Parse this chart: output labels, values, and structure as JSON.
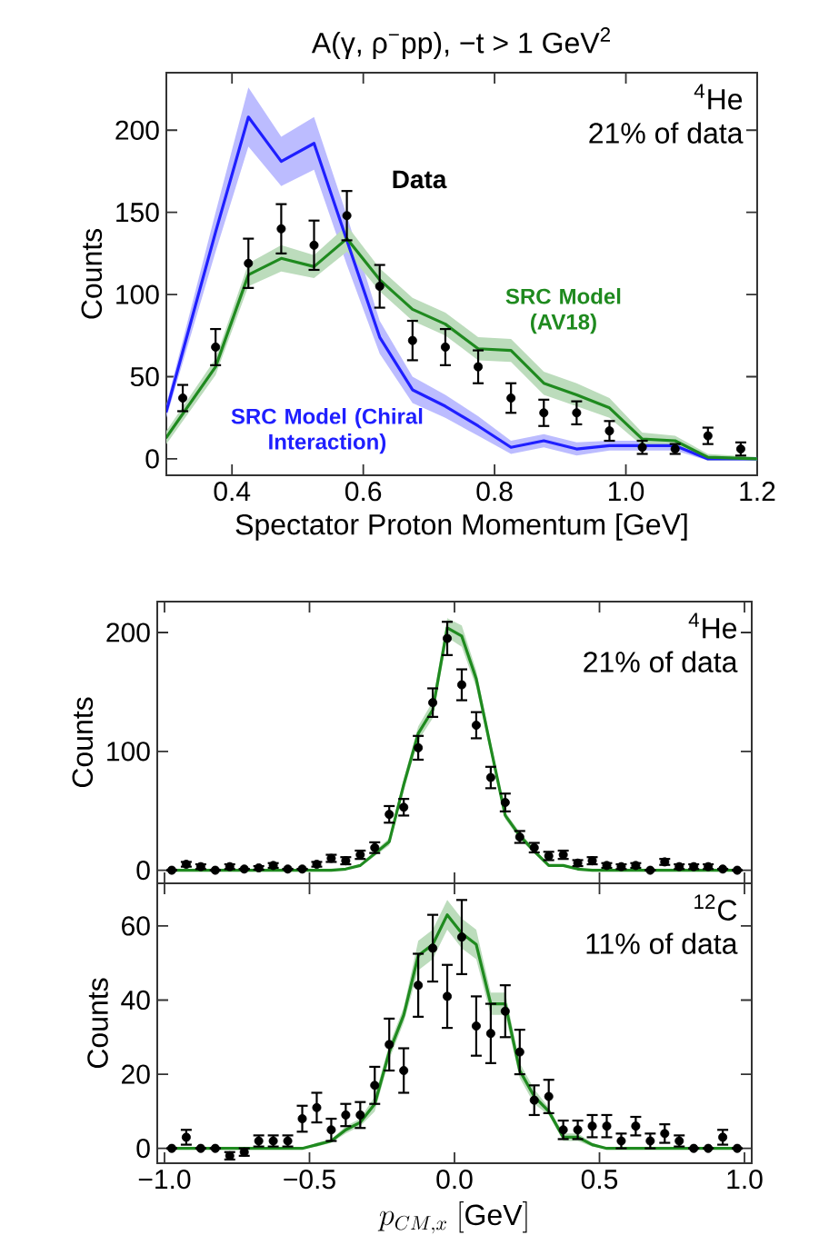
{
  "chart_data": [
    {
      "type": "line",
      "title": "A(γ, ρ$^{−}$pp), −t > 1 GeV$^{2}$",
      "xlabel": "Spectator Proton Momentum [GeV]",
      "ylabel": "Counts",
      "xlim": [
        0.3,
        1.2
      ],
      "ylim": [
        -10,
        235
      ],
      "xticks": [
        {
          "value": 0.4,
          "label": "0.4"
        },
        {
          "value": 0.6,
          "label": "0.6"
        },
        {
          "value": 0.8,
          "label": "0.8"
        },
        {
          "value": 1.0,
          "label": "1.0"
        },
        {
          "value": 1.2,
          "label": "1.2"
        }
      ],
      "yticks": [
        0,
        50,
        100,
        150,
        200
      ],
      "annotations": [
        "$^{4}$He",
        "21% of data"
      ],
      "series": [
        {
          "name": "Data",
          "type": "scatter",
          "marker": "circle",
          "color": "#000000",
          "x": [
            0.325,
            0.375,
            0.425,
            0.475,
            0.525,
            0.575,
            0.625,
            0.675,
            0.725,
            0.775,
            0.825,
            0.875,
            0.925,
            0.975,
            1.025,
            1.075,
            1.125,
            1.175
          ],
          "values": [
            37,
            68,
            119,
            140,
            130,
            148,
            105,
            72,
            68,
            56,
            37,
            28,
            28,
            17,
            7,
            6,
            14,
            6
          ],
          "errors": [
            8,
            11,
            15,
            15,
            15,
            15,
            13,
            12,
            11,
            10,
            9,
            8,
            7,
            6,
            4,
            3,
            5,
            4
          ]
        },
        {
          "name": "SRC Model (Chiral Interaction)",
          "color": "#1f1fff",
          "x": [
            0.3,
            0.375,
            0.425,
            0.475,
            0.525,
            0.575,
            0.625,
            0.675,
            0.725,
            0.775,
            0.825,
            0.875,
            0.925,
            0.975,
            1.025,
            1.075,
            1.125,
            1.2
          ],
          "values": [
            29,
            138,
            208,
            181,
            192,
            133,
            74,
            42,
            32,
            20,
            7,
            11,
            6,
            8,
            8,
            8,
            0,
            0
          ],
          "lower": [
            25,
            126,
            190,
            166,
            176,
            118,
            64,
            34,
            25,
            14,
            3,
            7,
            2,
            5,
            5,
            5,
            -1,
            -1
          ],
          "upper": [
            33,
            150,
            226,
            196,
            208,
            148,
            84,
            50,
            39,
            26,
            11,
            15,
            10,
            11,
            11,
            11,
            2,
            1
          ]
        },
        {
          "name": "SRC Model (AV18)",
          "color": "#1f8a1f",
          "x": [
            0.3,
            0.375,
            0.425,
            0.475,
            0.525,
            0.575,
            0.625,
            0.675,
            0.725,
            0.775,
            0.825,
            0.875,
            0.925,
            0.975,
            1.025,
            1.075,
            1.125,
            1.2
          ],
          "values": [
            13,
            56,
            112,
            122,
            117,
            134,
            109,
            91,
            82,
            67,
            66,
            46,
            39,
            31,
            12,
            11,
            1,
            0
          ],
          "lower": [
            9,
            51,
            105,
            114,
            110,
            126,
            102,
            84,
            75,
            60,
            59,
            39,
            32,
            25,
            8,
            8,
            -1,
            -1
          ],
          "upper": [
            17,
            61,
            119,
            130,
            124,
            142,
            116,
            98,
            89,
            74,
            73,
            53,
            46,
            37,
            16,
            14,
            3,
            1
          ]
        }
      ]
    },
    {
      "type": "line",
      "ylabel": "Counts",
      "tick_labels": "y",
      "xlim": [
        -1.025,
        1.025
      ],
      "ylim": [
        -11,
        226
      ],
      "xticks": [
        {
          "value": -1.0,
          "label": null
        },
        {
          "value": -0.5,
          "label": null
        },
        {
          "value": 0.0,
          "label": null
        },
        {
          "value": 0.5,
          "label": null
        },
        {
          "value": 1.0,
          "label": null
        }
      ],
      "yticks": [
        0,
        100,
        200
      ],
      "annotations": [
        "$^{4}$He",
        "21% of data"
      ],
      "series": [
        {
          "type": "scatter",
          "marker": "circle",
          "color": "#000000",
          "x": [
            -0.975,
            -0.925,
            -0.875,
            -0.825,
            -0.775,
            -0.725,
            -0.675,
            -0.625,
            -0.575,
            -0.525,
            -0.475,
            -0.425,
            -0.375,
            -0.325,
            -0.275,
            -0.225,
            -0.175,
            -0.125,
            -0.075,
            -0.025,
            0.025,
            0.075,
            0.125,
            0.175,
            0.225,
            0.275,
            0.325,
            0.375,
            0.425,
            0.475,
            0.525,
            0.575,
            0.625,
            0.675,
            0.725,
            0.775,
            0.825,
            0.875,
            0.925,
            0.975
          ],
          "values": [
            0,
            5,
            3,
            0,
            3,
            1,
            2,
            4,
            1,
            1,
            5,
            10,
            8,
            13,
            19,
            47,
            53,
            103,
            141,
            195,
            156,
            122,
            78,
            57,
            28,
            19,
            12,
            13,
            6,
            8,
            4,
            3,
            4,
            0,
            7,
            3,
            3,
            3,
            1,
            0
          ],
          "errors": [
            null,
            2,
            2,
            null,
            2,
            null,
            1.5,
            2,
            null,
            null,
            2,
            3,
            3,
            3.5,
            4.5,
            7,
            7,
            10,
            12,
            14,
            13,
            11,
            9,
            7.5,
            5,
            4,
            3.5,
            3.5,
            2.5,
            3,
            2,
            2,
            2,
            null,
            2.5,
            2,
            2,
            2,
            null,
            null
          ]
        },
        {
          "color": "#1f8a1f",
          "x": [
            -0.975,
            -0.925,
            -0.875,
            -0.825,
            -0.775,
            -0.725,
            -0.675,
            -0.625,
            -0.575,
            -0.525,
            -0.475,
            -0.425,
            -0.375,
            -0.325,
            -0.275,
            -0.225,
            -0.175,
            -0.125,
            -0.075,
            -0.025,
            0.025,
            0.075,
            0.125,
            0.175,
            0.225,
            0.275,
            0.325,
            0.375,
            0.425,
            0.475,
            0.525,
            0.575,
            0.625,
            0.675,
            0.725,
            0.775,
            0.825,
            0.875,
            0.925,
            0.975
          ],
          "values": [
            0,
            0,
            0,
            0,
            0,
            0,
            0,
            0,
            0,
            0,
            0,
            0,
            1,
            4,
            14,
            24,
            72,
            115,
            135,
            204,
            197,
            161,
            103,
            46,
            29,
            16,
            4,
            4,
            1,
            0,
            0,
            0,
            0,
            0,
            0,
            0,
            0,
            0,
            0,
            0
          ],
          "lower": [
            0,
            0,
            0,
            0,
            0,
            0,
            0,
            0,
            0,
            0,
            0,
            0,
            0.5,
            3,
            12,
            21,
            67,
            109,
            128,
            196,
            188,
            154,
            98,
            43,
            26,
            14,
            3,
            3,
            0.5,
            0,
            0,
            0,
            0,
            0,
            0,
            0,
            0,
            0,
            0,
            0
          ],
          "upper": [
            0,
            0,
            0,
            0,
            0,
            0,
            0,
            0,
            0,
            0,
            0,
            0,
            1.5,
            5,
            16,
            27,
            77,
            121,
            142,
            212,
            206,
            168,
            108,
            49,
            32,
            18,
            5,
            5,
            1.5,
            0,
            0,
            0,
            0,
            0,
            0,
            0,
            0,
            0,
            0,
            0
          ]
        }
      ]
    },
    {
      "type": "line",
      "xlabel": "p_{CM,x}\\ [\\mathrm{GeV}]",
      "ylabel": "Counts",
      "xlim": [
        -1.025,
        1.025
      ],
      "ylim": [
        -4,
        71.5
      ],
      "xticks": [
        {
          "value": -1.0,
          "label": "−1.0"
        },
        {
          "value": -0.5,
          "label": "−0.5"
        },
        {
          "value": 0.0,
          "label": "0.0"
        },
        {
          "value": 0.5,
          "label": "0.5"
        },
        {
          "value": 1.0,
          "label": "1.0"
        }
      ],
      "yticks": [
        0,
        20,
        40,
        60
      ],
      "annotations": [
        "$^{12}$C",
        "11% of data"
      ],
      "series": [
        {
          "type": "scatter",
          "marker": "circle",
          "color": "#000000",
          "x": [
            -0.975,
            -0.925,
            -0.875,
            -0.825,
            -0.775,
            -0.725,
            -0.675,
            -0.625,
            -0.575,
            -0.525,
            -0.475,
            -0.425,
            -0.375,
            -0.325,
            -0.275,
            -0.225,
            -0.175,
            -0.125,
            -0.075,
            -0.025,
            0.025,
            0.075,
            0.125,
            0.175,
            0.225,
            0.275,
            0.325,
            0.375,
            0.425,
            0.475,
            0.525,
            0.575,
            0.625,
            0.675,
            0.725,
            0.775,
            0.825,
            0.875,
            0.925,
            0.975
          ],
          "values": [
            0,
            3,
            0,
            0,
            -2,
            -1,
            2,
            2,
            2,
            8,
            11,
            5,
            9,
            9,
            17,
            28,
            21,
            44,
            54,
            41,
            57,
            33,
            31,
            37,
            26,
            13,
            14,
            5,
            5,
            6,
            6,
            2,
            6,
            2,
            4,
            2,
            0,
            0,
            3,
            0
          ],
          "errors": [
            null,
            2,
            null,
            null,
            1,
            1,
            1.5,
            1.5,
            1.5,
            3.5,
            4,
            3,
            3,
            3.5,
            5,
            7,
            6,
            8.5,
            9,
            8.5,
            10,
            8,
            8,
            7,
            6,
            4,
            4.5,
            2.5,
            2.5,
            3,
            3,
            2,
            2.5,
            2,
            2.5,
            1.5,
            null,
            null,
            2,
            null
          ]
        },
        {
          "color": "#1f8a1f",
          "x": [
            -0.975,
            -0.925,
            -0.875,
            -0.825,
            -0.775,
            -0.725,
            -0.675,
            -0.625,
            -0.575,
            -0.525,
            -0.475,
            -0.425,
            -0.375,
            -0.325,
            -0.275,
            -0.225,
            -0.175,
            -0.125,
            -0.075,
            -0.025,
            0.025,
            0.075,
            0.125,
            0.175,
            0.225,
            0.275,
            0.325,
            0.375,
            0.425,
            0.475,
            0.525,
            0.575,
            0.625,
            0.675,
            0.725,
            0.775,
            0.825,
            0.875,
            0.925,
            0.975
          ],
          "values": [
            0,
            0,
            0,
            0,
            0,
            0,
            0,
            0,
            0,
            0,
            1,
            2,
            5,
            7,
            12,
            26,
            36,
            52,
            55,
            63,
            58,
            55,
            39,
            39,
            21,
            14,
            10,
            3,
            3,
            1,
            0,
            0,
            0,
            0,
            0,
            0,
            0,
            0,
            0,
            0
          ],
          "lower": [
            0,
            0,
            0,
            0,
            0,
            0,
            0,
            0,
            0,
            0,
            0.5,
            1.5,
            4,
            6,
            10,
            24,
            34,
            48,
            51,
            59,
            54,
            51,
            36,
            36,
            19,
            12,
            9,
            2,
            2,
            0.5,
            0,
            0,
            0,
            0,
            0,
            0,
            0,
            0,
            0,
            0
          ],
          "upper": [
            0,
            0,
            0,
            0,
            0,
            0,
            0,
            0,
            0,
            0,
            1.5,
            2.5,
            6,
            8,
            14,
            28,
            38,
            56,
            59,
            67,
            62,
            59,
            42,
            42,
            23,
            16,
            11,
            4,
            4,
            1.5,
            0,
            0,
            0,
            0,
            0,
            0,
            0,
            0,
            0,
            0
          ]
        }
      ]
    }
  ]
}
